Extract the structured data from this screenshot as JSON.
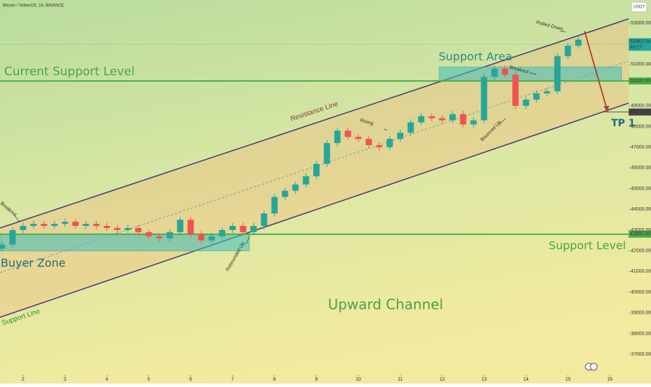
{
  "chart_data": {
    "type": "candlestick",
    "title": "Bitcoin / TetherUS, 1h, BINANCE",
    "currency": "USDT",
    "up_color": "#26a69a",
    "down_color": "#ef5350",
    "xlim": [
      1.45,
      16.45
    ],
    "xticks": [
      2,
      3,
      4,
      5,
      6,
      7,
      8,
      9,
      10,
      11,
      12,
      13,
      14,
      15,
      16
    ],
    "ylim": [
      35590,
      54110
    ],
    "yticks": [
      {
        "value": 53000,
        "label": "53000.00"
      },
      {
        "value": 51000,
        "label": "51000.00"
      },
      {
        "value": 49000,
        "label": "49000.00"
      },
      {
        "value": 48000,
        "label": "48000.00"
      },
      {
        "value": 47000,
        "label": "47000.00"
      },
      {
        "value": 46000,
        "label": "46000.00"
      },
      {
        "value": 45000,
        "label": "45000.00"
      },
      {
        "value": 44000,
        "label": "44000.00"
      },
      {
        "value": 43000,
        "label": "43000.00"
      },
      {
        "value": 42000,
        "label": "42000.00"
      },
      {
        "value": 41000,
        "label": "41000.00"
      },
      {
        "value": 40000,
        "label": "40000.00"
      },
      {
        "value": 39000,
        "label": "39000.00"
      },
      {
        "value": 38000,
        "label": "38000.00"
      },
      {
        "value": 37000,
        "label": "37000.00"
      }
    ],
    "x": [
      1.5,
      1.75,
      2,
      2.25,
      2.5,
      2.75,
      3,
      3.25,
      3.5,
      3.75,
      4,
      4.25,
      4.5,
      4.75,
      5,
      5.25,
      5.5,
      5.75,
      6,
      6.25,
      6.5,
      6.75,
      7,
      7.25,
      7.5,
      7.75,
      8,
      8.25,
      8.5,
      8.75,
      9,
      9.25,
      9.5,
      9.75,
      10,
      10.25,
      10.5,
      10.75,
      11,
      11.25,
      11.5,
      11.75,
      12,
      12.25,
      12.5,
      12.75,
      13,
      13.25,
      13.5,
      13.75,
      14,
      14.25,
      14.5,
      14.75,
      15,
      15.25
    ],
    "open": [
      42100,
      42300,
      43000,
      43200,
      43300,
      43200,
      43300,
      43400,
      43200,
      43300,
      43200,
      43100,
      43000,
      43100,
      42900,
      42700,
      42600,
      42900,
      43500,
      42800,
      42500,
      42700,
      43000,
      43200,
      42900,
      43200,
      43800,
      44600,
      44900,
      45200,
      45600,
      46200,
      47200,
      47800,
      47500,
      47400,
      47100,
      47000,
      47400,
      47700,
      48200,
      48500,
      48400,
      48300,
      48600,
      48100,
      48300,
      50400,
      50800,
      50500,
      49000,
      49300,
      49600,
      49700,
      51400,
      51900
    ],
    "high": [
      42450,
      43150,
      43350,
      43450,
      43450,
      43450,
      43550,
      43550,
      43450,
      43450,
      43350,
      43250,
      43250,
      43250,
      43050,
      42850,
      43050,
      43650,
      43650,
      42950,
      42850,
      43150,
      43350,
      43350,
      43350,
      43950,
      44750,
      45050,
      45350,
      45750,
      46350,
      47350,
      47950,
      47950,
      47650,
      47550,
      47250,
      47550,
      47850,
      48350,
      48650,
      48650,
      48550,
      48750,
      48750,
      48450,
      50550,
      50950,
      50950,
      50650,
      49450,
      49750,
      49850,
      51550,
      52050,
      52350
    ],
    "low": [
      41950,
      42150,
      42850,
      43050,
      43050,
      43050,
      43150,
      43050,
      43050,
      43050,
      42950,
      42850,
      42850,
      42750,
      42550,
      42450,
      42450,
      42750,
      42650,
      42350,
      42350,
      42550,
      42850,
      42750,
      42750,
      43050,
      43650,
      44450,
      44750,
      45050,
      45450,
      46050,
      47050,
      47350,
      47250,
      46950,
      46850,
      46850,
      47250,
      47550,
      48050,
      48250,
      48150,
      48150,
      47950,
      47950,
      48150,
      50250,
      50350,
      48850,
      48850,
      49150,
      49450,
      49550,
      51250,
      51750
    ],
    "close": [
      42300,
      43000,
      43200,
      43300,
      43200,
      43300,
      43400,
      43200,
      43300,
      43200,
      43100,
      43000,
      43100,
      42900,
      42700,
      42600,
      42900,
      43500,
      42800,
      42500,
      42700,
      43000,
      43200,
      42900,
      43200,
      43800,
      44600,
      44900,
      45200,
      45600,
      46200,
      47200,
      47800,
      47500,
      47400,
      47100,
      47000,
      47400,
      47700,
      48200,
      48500,
      48400,
      48300,
      48600,
      48100,
      48300,
      50400,
      50800,
      50500,
      49000,
      49300,
      49600,
      49700,
      51400,
      51900,
      52200
    ],
    "levels": [
      {
        "name": "Current Support Level",
        "value": 50200,
        "label": "50200.00",
        "color": "#4cae4c"
      },
      {
        "name": "Support Level",
        "value": 42800,
        "label": "42800.00",
        "color": "#4cae4c"
      }
    ],
    "target": {
      "name": "TP 1",
      "value": 48700,
      "label": "48700.00"
    },
    "last_price": {
      "value": 51962.04,
      "label": "51962.04",
      "countdown": "40:17"
    },
    "channel": {
      "name": "Upward Channel",
      "color": "#4b3f7a",
      "upper": {
        "name": "Resistance Line",
        "x": [
          1.45,
          16.45
        ],
        "y": [
          43100,
          53200
        ]
      },
      "lower": {
        "name": "Support Line",
        "x": [
          1.45,
          16.45
        ],
        "y": [
          38790,
          49130
        ]
      }
    },
    "zones": [
      {
        "name": "Buyer Zone",
        "x": [
          1.45,
          7.4
        ],
        "y": [
          41990,
          42800
        ]
      },
      {
        "name": "Support Area",
        "x": [
          11.93,
          16.28
        ],
        "y": [
          50200,
          50880
        ]
      }
    ],
    "projection": {
      "x": [
        15.4,
        15.95
      ],
      "y": [
        52600,
        48700
      ],
      "color": "#b03a3a"
    },
    "notes": [
      "Breakout",
      "Rebounded Up",
      "Rising",
      "Bounced Up",
      "Breakout",
      "Rolled Down"
    ]
  }
}
